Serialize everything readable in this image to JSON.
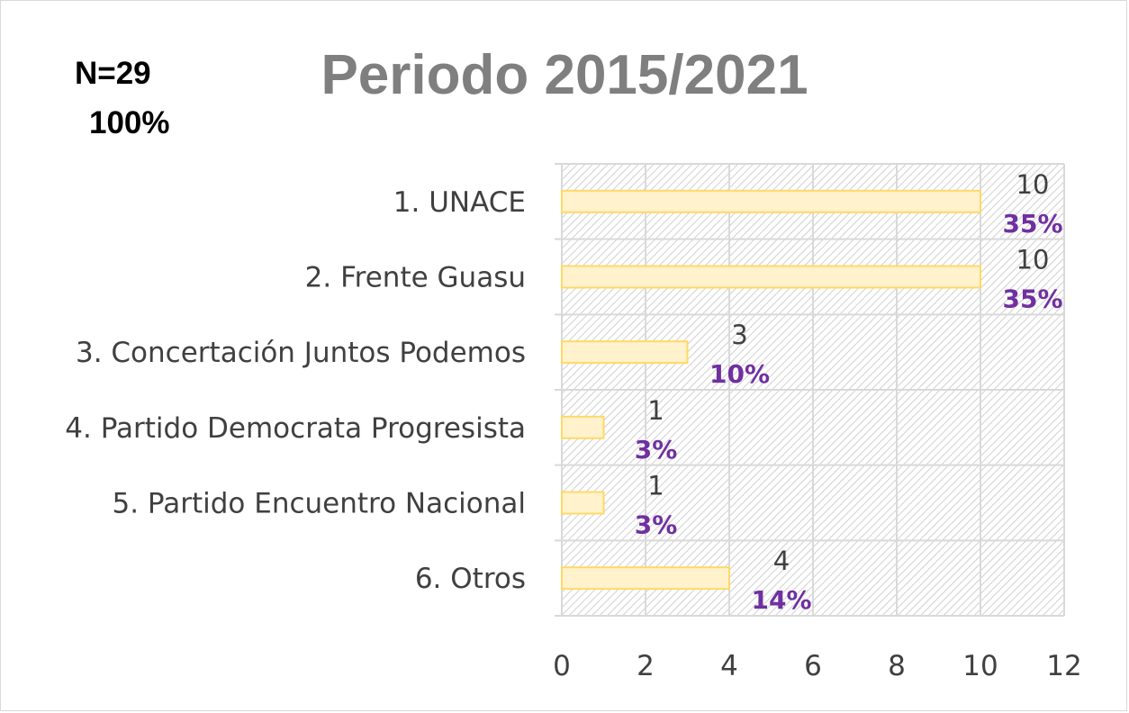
{
  "chart_data": {
    "type": "bar",
    "orientation": "horizontal",
    "title": "Periodo 2015/2021",
    "annotations": [
      "N=29",
      "100%"
    ],
    "categories": [
      "1. UNACE",
      "2. Frente Guasu",
      "3. Concertación Juntos Podemos",
      "4. Partido Democrata Progresista",
      "5. Partido Encuentro Nacional",
      "6. Otros"
    ],
    "values": [
      10,
      10,
      3,
      1,
      1,
      4
    ],
    "percent_labels": [
      "35%",
      "35%",
      "10%",
      "3%",
      "3%",
      "14%"
    ],
    "xlim": [
      0,
      12
    ],
    "xticks": [
      0,
      2,
      4,
      6,
      8,
      10,
      12
    ],
    "grid": true,
    "legend": "none",
    "colors": {
      "bar_fill": "#fff2cc",
      "bar_stroke": "#ffd966",
      "percent_label": "#7030a0",
      "value_label": "#404040",
      "title": "#7f7f7f",
      "hatch": "#d0d0d0"
    }
  }
}
